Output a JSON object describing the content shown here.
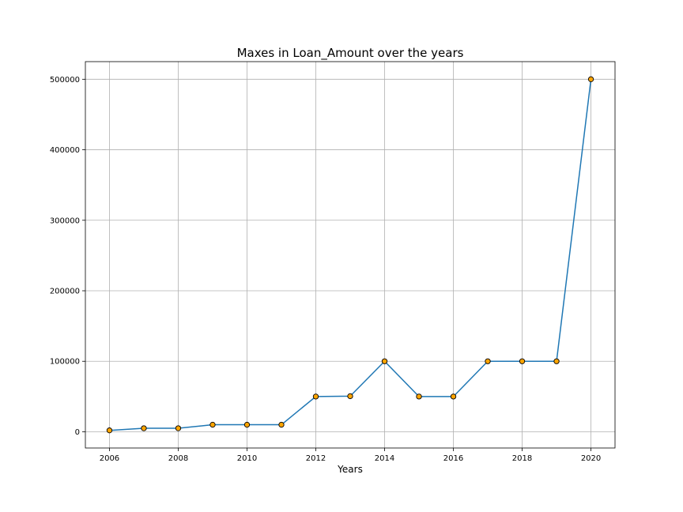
{
  "chart_data": {
    "type": "line",
    "title": "Maxes in Loan_Amount over the years",
    "xlabel": "Years",
    "ylabel": "",
    "x": [
      2006,
      2007,
      2008,
      2009,
      2010,
      2011,
      2012,
      2013,
      2014,
      2015,
      2016,
      2017,
      2018,
      2019,
      2020
    ],
    "series": [
      {
        "values": [
          2000,
          5000,
          5000,
          10000,
          10000,
          10000,
          50000,
          50500,
          100000,
          50000,
          50000,
          100000,
          100000,
          100000,
          500000
        ]
      }
    ],
    "xticks": [
      "2006",
      "2008",
      "2010",
      "2012",
      "2014",
      "2016",
      "2018",
      "2020"
    ],
    "yticks": [
      "0",
      "100000",
      "200000",
      "300000",
      "400000",
      "500000"
    ],
    "xlim": [
      2005.3,
      2020.7
    ],
    "ylim": [
      -23000,
      525000
    ],
    "grid": true,
    "legend": "none",
    "colors": {
      "line": "#1f77b4",
      "marker_fill": "#ffa500",
      "marker_edge": "#000000",
      "grid": "#b0b0b0"
    }
  }
}
